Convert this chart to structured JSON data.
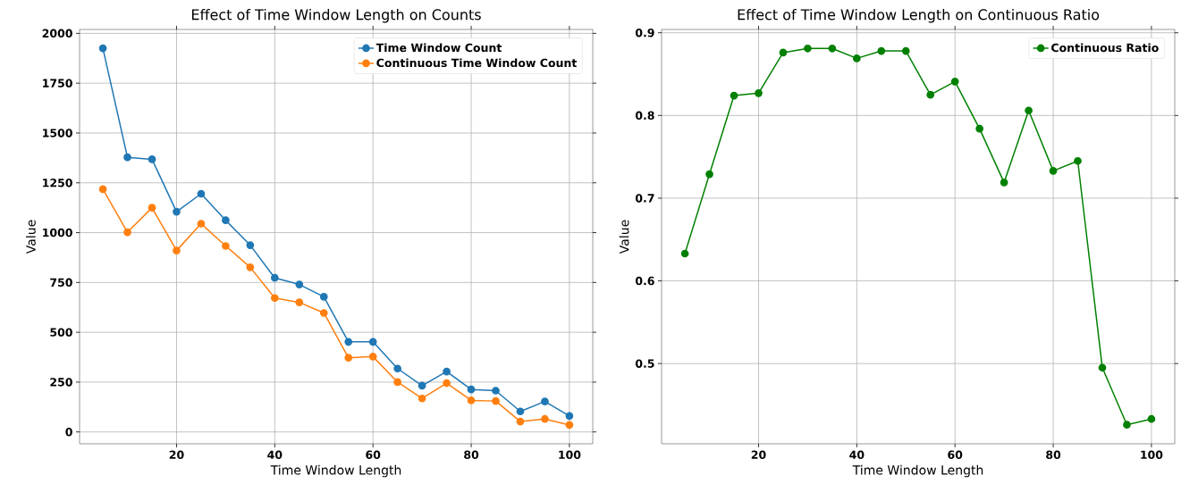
{
  "chart_data": [
    {
      "type": "line",
      "title": "Effect of Time Window Length on Counts",
      "xlabel": "Time Window Length",
      "ylabel": "Value",
      "x": [
        5,
        10,
        15,
        20,
        25,
        30,
        35,
        40,
        45,
        50,
        55,
        60,
        65,
        70,
        75,
        80,
        85,
        90,
        95,
        100
      ],
      "series": [
        {
          "name": "Time Window Count",
          "color": "#1f77b4",
          "values": [
            1925,
            1378,
            1368,
            1105,
            1195,
            1062,
            937,
            773,
            740,
            678,
            452,
            452,
            318,
            232,
            303,
            213,
            207,
            103,
            153,
            80
          ]
        },
        {
          "name": "Continuous Time Window Count",
          "color": "#ff7f0e",
          "values": [
            1218,
            1002,
            1125,
            910,
            1045,
            933,
            826,
            672,
            650,
            597,
            372,
            378,
            250,
            168,
            245,
            158,
            155,
            52,
            65,
            35
          ]
        }
      ],
      "xlim": [
        0.25,
        104.75
      ],
      "ylim": [
        -59.5,
        2019.5
      ],
      "xticks": [
        20,
        40,
        60,
        80,
        100
      ],
      "yticks": [
        0,
        250,
        500,
        750,
        1000,
        1250,
        1500,
        1750,
        2000
      ],
      "grid": true,
      "legend": "top right",
      "marker": "circle",
      "line_style": "solid"
    },
    {
      "type": "line",
      "title": "Effect of Time Window Length on Continuous Ratio",
      "xlabel": "Time Window Length",
      "ylabel": "Value",
      "x": [
        5,
        10,
        15,
        20,
        25,
        30,
        35,
        40,
        45,
        50,
        55,
        60,
        65,
        70,
        75,
        80,
        85,
        90,
        95,
        100
      ],
      "series": [
        {
          "name": "Continuous Ratio",
          "color": "#008000",
          "values": [
            0.633,
            0.729,
            0.824,
            0.827,
            0.876,
            0.881,
            0.881,
            0.869,
            0.878,
            0.878,
            0.825,
            0.841,
            0.784,
            0.719,
            0.806,
            0.733,
            0.745,
            0.495,
            0.426,
            0.433
          ]
        }
      ],
      "xlim": [
        0.25,
        104.75
      ],
      "ylim": [
        0.403,
        0.904
      ],
      "xticks": [
        20,
        40,
        60,
        80,
        100
      ],
      "yticks": [
        0.5,
        0.6,
        0.7,
        0.8,
        0.9
      ],
      "grid": true,
      "legend": "top right",
      "marker": "circle",
      "line_style": "solid"
    }
  ]
}
